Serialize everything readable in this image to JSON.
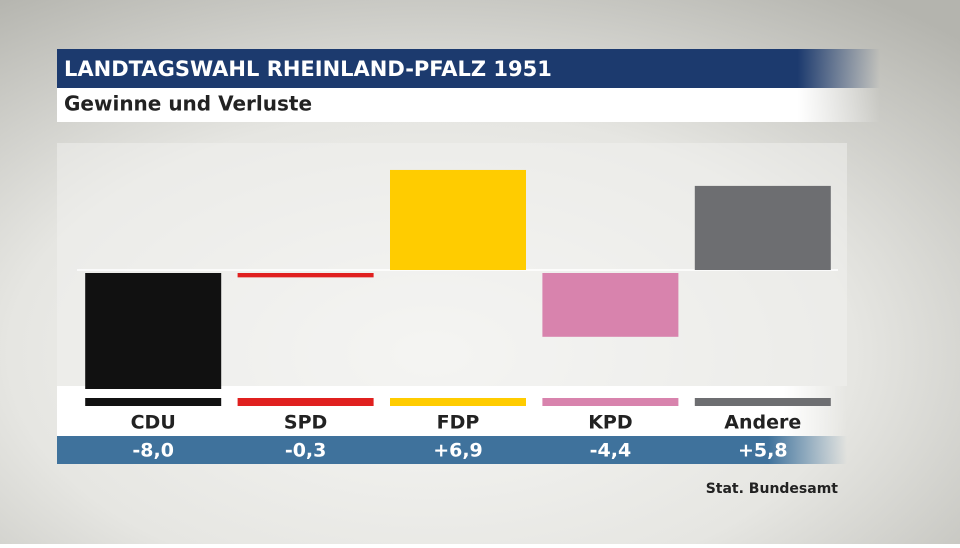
{
  "chart_data": {
    "type": "bar",
    "title": "LANDTAGSWAHL RHEINLAND-PFALZ 1951",
    "subtitle": "Gewinne und Verluste",
    "categories": [
      "CDU",
      "SPD",
      "FDP",
      "KPD",
      "Andere"
    ],
    "values": [
      -8.0,
      -0.3,
      6.9,
      -4.4,
      5.8
    ],
    "value_labels": [
      "-8,0",
      "-0,3",
      "+6,9",
      "-4,4",
      "+5,8"
    ],
    "colors": [
      "#111111",
      "#e0201f",
      "#ffcc00",
      "#d883ad",
      "#6d6e71"
    ],
    "source": "Stat. Bundesamt"
  }
}
